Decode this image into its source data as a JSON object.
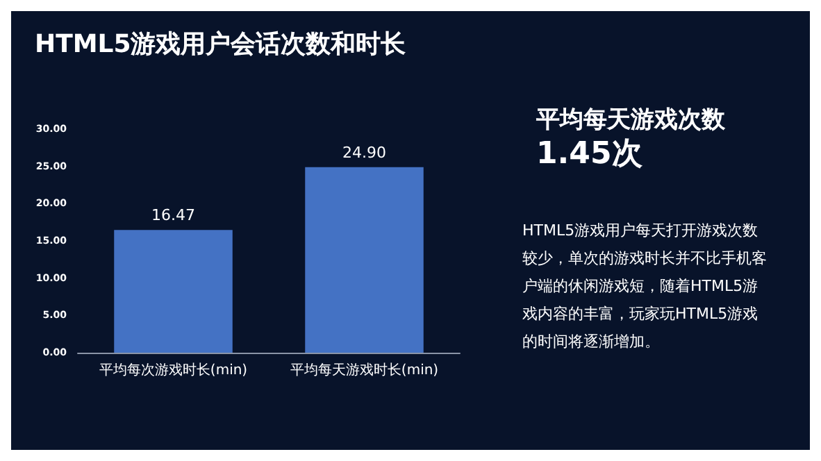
{
  "chart_data": {
    "type": "bar",
    "title": "HTML5游戏用户会话次数和时长",
    "categories": [
      "平均每次游戏时长(min)",
      "平均每天游戏时长(min)"
    ],
    "values": [
      16.47,
      24.9
    ],
    "color": "#4472c4",
    "value_labels": [
      "16.47",
      "24.90"
    ],
    "ylim": [
      0,
      30
    ],
    "yticks": [
      {
        "value": 0,
        "label": "0.00"
      },
      {
        "value": 5,
        "label": "5.00"
      },
      {
        "value": 10,
        "label": "10.00"
      },
      {
        "value": 15,
        "label": "15.00"
      },
      {
        "value": 20,
        "label": "20.00"
      },
      {
        "value": 25,
        "label": "25.00"
      },
      {
        "value": 30,
        "label": "30.00"
      }
    ],
    "grid": false,
    "annotations": [
      "平均每天游戏次数",
      "1.45次",
      "HTML5游戏用户每天打开游戏次数较少，单次的游戏时长并不比手机客户端的休闲游戏短，随着HTML5游戏内容的丰富，玩家玩HTML5游戏的时间将逐渐增加。"
    ]
  }
}
